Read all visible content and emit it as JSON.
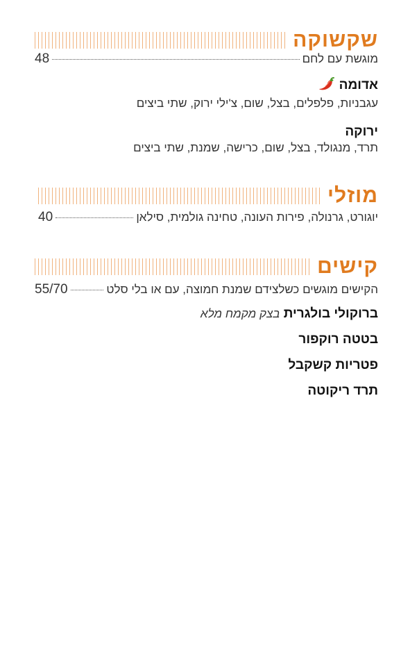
{
  "sections": [
    {
      "title": "שקשוקה",
      "line": "מוגשת עם לחם",
      "price": "48",
      "items": [
        {
          "name": "אדומה",
          "spicy": true,
          "desc": "עגבניות, פלפלים, בצל, שום, צ'ילי ירוק, שתי ביצים"
        },
        {
          "name": "ירוקה",
          "desc": "תרד, מנגולד, בצל, שום, כרישה, שמנת, שתי ביצים"
        }
      ]
    },
    {
      "title": "מוזלי",
      "line": "יוגורט, גרנולה, פירות העונה, טחינה גולמית, סילאן",
      "price": "40"
    },
    {
      "title": "קישים",
      "line": "הקישים מוגשים כשלצידם שמנת חמוצה, עם או בלי סלט",
      "price": "55/70",
      "items": [
        {
          "name": "ברוקולי בולגרית",
          "sub": "בצק מקמח מלא"
        },
        {
          "name": "בטטה רוקפור"
        },
        {
          "name": "פטריות קשקבל"
        },
        {
          "name": "תרד ריקוטה"
        }
      ]
    }
  ],
  "colors": {
    "accent": "#e07b1f",
    "stripe": "#f0b27d"
  },
  "icons": {
    "spicy": "chili-pepper-icon"
  }
}
